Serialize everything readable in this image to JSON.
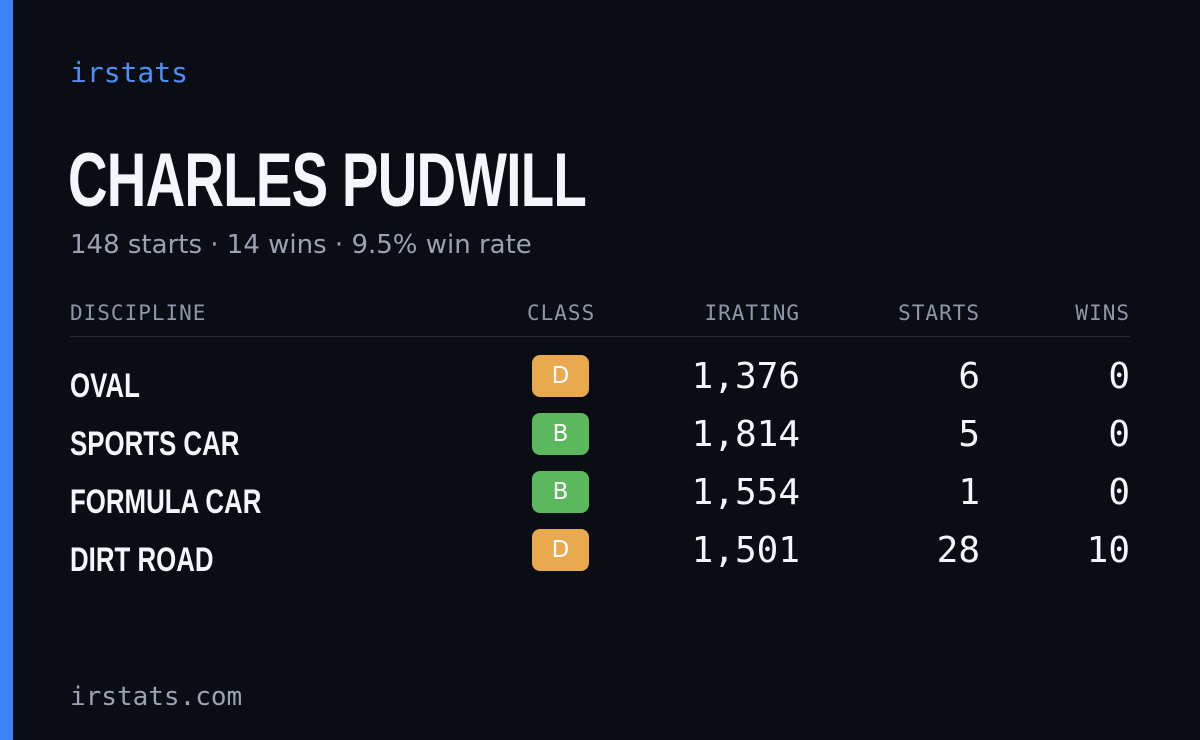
{
  "brand": "irstats",
  "player": {
    "name": "CHARLES PUDWILL",
    "summary": "148 starts · 14 wins · 9.5% win rate"
  },
  "table": {
    "headers": {
      "discipline": "DISCIPLINE",
      "class": "CLASS",
      "irating": "IRATING",
      "starts": "STARTS",
      "wins": "WINS"
    },
    "rows": [
      {
        "discipline": "OVAL",
        "class": "D",
        "irating": "1,376",
        "starts": "6",
        "wins": "0"
      },
      {
        "discipline": "SPORTS CAR",
        "class": "B",
        "irating": "1,814",
        "starts": "5",
        "wins": "0"
      },
      {
        "discipline": "FORMULA CAR",
        "class": "B",
        "irating": "1,554",
        "starts": "1",
        "wins": "0"
      },
      {
        "discipline": "DIRT ROAD",
        "class": "D",
        "irating": "1,501",
        "starts": "28",
        "wins": "10"
      }
    ]
  },
  "class_colors": {
    "B": "#5cb85c",
    "D": "#e9a94f"
  },
  "colors": {
    "accent": "#3b82f6",
    "background": "#0b0d14"
  },
  "footer": {
    "url": "irstats.com"
  }
}
